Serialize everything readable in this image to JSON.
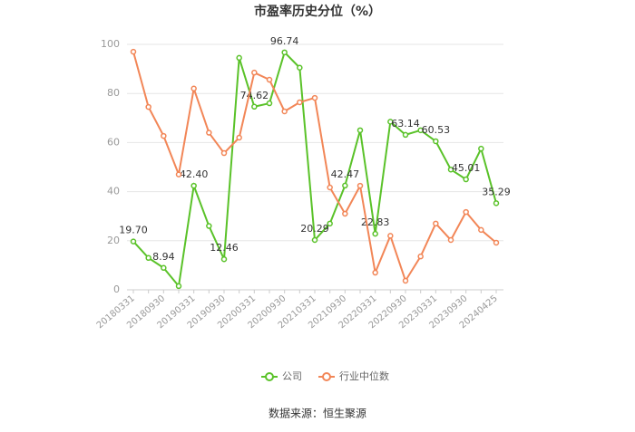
{
  "chart_data": {
    "type": "line",
    "title": "市盈率历史分位（%）",
    "source": "数据来源：恒生聚源",
    "categories": [
      "20180331",
      null,
      "20180930",
      null,
      "20190331",
      null,
      "20190930",
      null,
      "20200331",
      null,
      "20200930",
      null,
      "20210331",
      null,
      "20210930",
      null,
      "20220331",
      null,
      "20220930",
      null,
      "20230331",
      null,
      "20230930",
      null,
      "20240425"
    ],
    "series": [
      {
        "name": "公司",
        "color": "#5ac229",
        "values": [
          19.7,
          13,
          8.94,
          1.5,
          42.4,
          26,
          12.46,
          94.5,
          74.62,
          76,
          96.74,
          90.5,
          20.29,
          27,
          42.47,
          65,
          22.83,
          68.5,
          63.14,
          65,
          60.53,
          49,
          45.01,
          57.5,
          35.29
        ],
        "value_labels": [
          "19.70",
          null,
          "8.94",
          null,
          "42.40",
          null,
          "12.46",
          null,
          "74.62",
          null,
          "96.74",
          null,
          "20.29",
          null,
          "42.47",
          null,
          "22.83",
          null,
          "63.14",
          null,
          "60.53",
          null,
          "45.01",
          null,
          "35.29"
        ]
      },
      {
        "name": "行业中位数",
        "color": "#f28657",
        "values": [
          97,
          74.5,
          62.7,
          47,
          82,
          64,
          55.7,
          62,
          88.5,
          85.6,
          72.7,
          76.4,
          78.2,
          41.7,
          31,
          42.4,
          7,
          22,
          3.7,
          13.6,
          27,
          20.3,
          31.7,
          24.4,
          19.2
        ]
      }
    ],
    "ylim": [
      0,
      100
    ],
    "yticks": [
      0,
      20,
      40,
      60,
      80,
      100
    ],
    "grid": true
  }
}
